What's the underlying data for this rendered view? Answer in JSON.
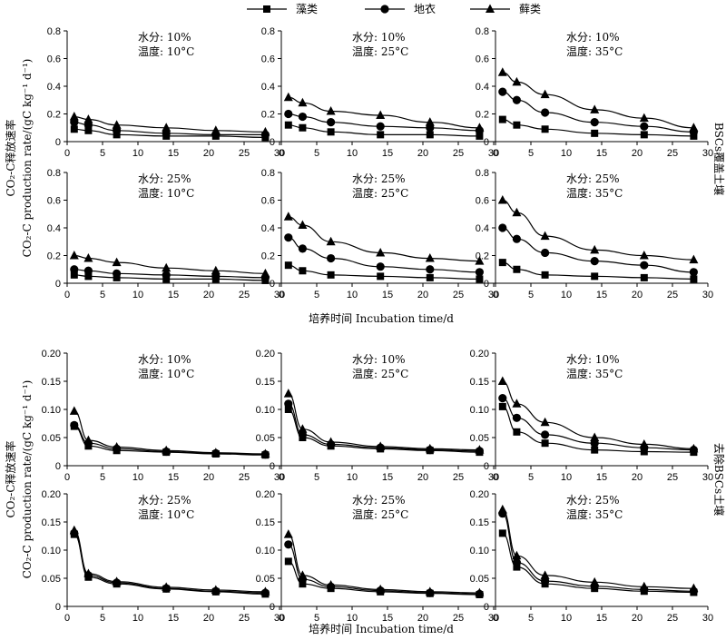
{
  "legend": [
    {
      "name": "藻类",
      "marker": "square"
    },
    {
      "name": "地衣",
      "marker": "circle"
    },
    {
      "name": "藓类",
      "marker": "triangle"
    }
  ],
  "row_groups": [
    {
      "label": "BSCs覆盖土壤",
      "ylabel_cn": "CO₂-C释放速率",
      "ylabel_en": "CO₂-C production rate/(gC kg⁻¹ d⁻¹)",
      "xlabel": "培养时间 Incubation time/d"
    },
    {
      "label": "去除BSCs土壤",
      "ylabel_cn": "CO₂-C释放速率",
      "ylabel_en": "CO₂-C production rate/(gC kg⁻¹ d⁻¹)",
      "xlabel": "培养时间 Incubation time/d"
    }
  ],
  "chart_data": [
    {
      "type": "line",
      "group": 0,
      "moisture": "水分: 10%",
      "temperature": "温度: 10°C",
      "ylim": [
        0,
        0.8
      ],
      "yticks": [
        "0",
        "0.2",
        "0.4",
        "0.6",
        "0.8"
      ],
      "xlim": [
        0,
        30
      ],
      "xticks": [
        "0",
        "5",
        "10",
        "15",
        "20",
        "25",
        "30"
      ],
      "x": [
        1,
        3,
        7,
        14,
        21,
        28
      ],
      "series": [
        {
          "name": "藻类",
          "values": [
            0.09,
            0.08,
            0.05,
            0.04,
            0.04,
            0.03
          ]
        },
        {
          "name": "地衣",
          "values": [
            0.14,
            0.12,
            0.08,
            0.06,
            0.05,
            0.05
          ]
        },
        {
          "name": "藓类",
          "values": [
            0.18,
            0.16,
            0.12,
            0.1,
            0.08,
            0.07
          ]
        }
      ]
    },
    {
      "type": "line",
      "group": 0,
      "moisture": "水分: 10%",
      "temperature": "温度: 25°C",
      "ylim": [
        0,
        0.8
      ],
      "yticks": [
        "0",
        "0.2",
        "0.4",
        "0.6",
        "0.8"
      ],
      "xlim": [
        0,
        30
      ],
      "xticks": [
        "0",
        "5",
        "10",
        "15",
        "20",
        "25",
        "30"
      ],
      "x": [
        1,
        3,
        7,
        14,
        21,
        28
      ],
      "series": [
        {
          "name": "藻类",
          "values": [
            0.12,
            0.1,
            0.07,
            0.05,
            0.05,
            0.04
          ]
        },
        {
          "name": "地衣",
          "values": [
            0.2,
            0.18,
            0.14,
            0.11,
            0.1,
            0.08
          ]
        },
        {
          "name": "藓类",
          "values": [
            0.32,
            0.28,
            0.22,
            0.19,
            0.14,
            0.1
          ]
        }
      ]
    },
    {
      "type": "line",
      "group": 0,
      "moisture": "水分: 10%",
      "temperature": "温度: 35°C",
      "ylim": [
        0,
        0.8
      ],
      "yticks": [
        "0",
        "0.2",
        "0.4",
        "0.6",
        "0.8"
      ],
      "xlim": [
        0,
        30
      ],
      "xticks": [
        "0",
        "5",
        "10",
        "15",
        "20",
        "25",
        "30"
      ],
      "x": [
        1,
        3,
        7,
        14,
        21,
        28
      ],
      "series": [
        {
          "name": "藻类",
          "values": [
            0.16,
            0.12,
            0.09,
            0.06,
            0.05,
            0.04
          ]
        },
        {
          "name": "地衣",
          "values": [
            0.36,
            0.3,
            0.21,
            0.14,
            0.11,
            0.07
          ]
        },
        {
          "name": "藓类",
          "values": [
            0.5,
            0.43,
            0.34,
            0.23,
            0.17,
            0.1
          ]
        }
      ]
    },
    {
      "type": "line",
      "group": 0,
      "moisture": "水分: 25%",
      "temperature": "温度: 10°C",
      "ylim": [
        0,
        0.8
      ],
      "yticks": [
        "0",
        "0.2",
        "0.4",
        "0.6",
        "0.8"
      ],
      "xlim": [
        0,
        30
      ],
      "xticks": [
        "0",
        "5",
        "10",
        "15",
        "20",
        "25",
        "30"
      ],
      "x": [
        1,
        3,
        7,
        14,
        21,
        28
      ],
      "series": [
        {
          "name": "藻类",
          "values": [
            0.06,
            0.05,
            0.04,
            0.03,
            0.03,
            0.02
          ]
        },
        {
          "name": "地衣",
          "values": [
            0.1,
            0.09,
            0.07,
            0.06,
            0.05,
            0.04
          ]
        },
        {
          "name": "藓类",
          "values": [
            0.2,
            0.18,
            0.15,
            0.11,
            0.09,
            0.07
          ]
        }
      ]
    },
    {
      "type": "line",
      "group": 0,
      "moisture": "水分: 25%",
      "temperature": "温度: 25°C",
      "ylim": [
        0,
        0.8
      ],
      "yticks": [
        "0",
        "0.2",
        "0.4",
        "0.6",
        "0.8"
      ],
      "xlim": [
        0,
        30
      ],
      "xticks": [
        "0",
        "5",
        "10",
        "15",
        "20",
        "25",
        "30"
      ],
      "x": [
        1,
        3,
        7,
        14,
        21,
        28
      ],
      "series": [
        {
          "name": "藻类",
          "values": [
            0.13,
            0.09,
            0.06,
            0.05,
            0.04,
            0.03
          ]
        },
        {
          "name": "地衣",
          "values": [
            0.33,
            0.25,
            0.18,
            0.12,
            0.1,
            0.08
          ]
        },
        {
          "name": "藓类",
          "values": [
            0.48,
            0.42,
            0.3,
            0.22,
            0.18,
            0.16
          ]
        }
      ]
    },
    {
      "type": "line",
      "group": 0,
      "moisture": "水分: 25%",
      "temperature": "温度: 35°C",
      "ylim": [
        0,
        0.8
      ],
      "yticks": [
        "0",
        "0.2",
        "0.4",
        "0.6",
        "0.8"
      ],
      "xlim": [
        0,
        30
      ],
      "xticks": [
        "0",
        "5",
        "10",
        "15",
        "20",
        "25",
        "30"
      ],
      "x": [
        1,
        3,
        7,
        14,
        21,
        28
      ],
      "series": [
        {
          "name": "藻类",
          "values": [
            0.15,
            0.1,
            0.06,
            0.05,
            0.04,
            0.03
          ]
        },
        {
          "name": "地衣",
          "values": [
            0.4,
            0.32,
            0.22,
            0.16,
            0.13,
            0.08
          ]
        },
        {
          "name": "藓类",
          "values": [
            0.6,
            0.51,
            0.34,
            0.24,
            0.2,
            0.17
          ]
        }
      ]
    },
    {
      "type": "line",
      "group": 1,
      "moisture": "水分: 10%",
      "temperature": "温度: 10°C",
      "ylim": [
        0,
        0.2
      ],
      "yticks": [
        "0",
        "0.05",
        "0.10",
        "0.15",
        "0.20"
      ],
      "xlim": [
        0,
        30
      ],
      "xticks": [
        "0",
        "5",
        "10",
        "15",
        "20",
        "25",
        "30"
      ],
      "x": [
        1,
        3,
        7,
        14,
        21,
        28
      ],
      "series": [
        {
          "name": "藻类",
          "values": [
            0.07,
            0.035,
            0.027,
            0.024,
            0.021,
            0.019
          ]
        },
        {
          "name": "地衣",
          "values": [
            0.072,
            0.04,
            0.03,
            0.025,
            0.022,
            0.02
          ]
        },
        {
          "name": "藓类",
          "values": [
            0.097,
            0.045,
            0.033,
            0.027,
            0.023,
            0.021
          ]
        }
      ]
    },
    {
      "type": "line",
      "group": 1,
      "moisture": "水分: 10%",
      "temperature": "温度: 25°C",
      "ylim": [
        0,
        0.2
      ],
      "yticks": [
        "0",
        "0.05",
        "0.10",
        "0.15",
        "0.20"
      ],
      "xlim": [
        0,
        30
      ],
      "xticks": [
        "0",
        "5",
        "10",
        "15",
        "20",
        "25",
        "30"
      ],
      "x": [
        1,
        3,
        7,
        14,
        21,
        28
      ],
      "series": [
        {
          "name": "藻类",
          "values": [
            0.1,
            0.05,
            0.035,
            0.03,
            0.027,
            0.024
          ]
        },
        {
          "name": "地衣",
          "values": [
            0.11,
            0.055,
            0.038,
            0.032,
            0.028,
            0.026
          ]
        },
        {
          "name": "藓类",
          "values": [
            0.128,
            0.065,
            0.042,
            0.034,
            0.03,
            0.028
          ]
        }
      ]
    },
    {
      "type": "line",
      "group": 1,
      "moisture": "水分: 10%",
      "temperature": "温度: 35°C",
      "ylim": [
        0,
        0.2
      ],
      "yticks": [
        "0",
        "0.05",
        "0.10",
        "0.15",
        "0.20"
      ],
      "xlim": [
        0,
        30
      ],
      "xticks": [
        "0",
        "5",
        "10",
        "15",
        "20",
        "25",
        "30"
      ],
      "x": [
        1,
        3,
        7,
        14,
        21,
        28
      ],
      "series": [
        {
          "name": "藻类",
          "values": [
            0.105,
            0.06,
            0.04,
            0.028,
            0.025,
            0.024
          ]
        },
        {
          "name": "地衣",
          "values": [
            0.12,
            0.085,
            0.055,
            0.04,
            0.032,
            0.028
          ]
        },
        {
          "name": "藓类",
          "values": [
            0.15,
            0.11,
            0.077,
            0.05,
            0.038,
            0.03
          ]
        }
      ]
    },
    {
      "type": "line",
      "group": 1,
      "moisture": "水分: 25%",
      "temperature": "温度: 10°C",
      "ylim": [
        0,
        0.2
      ],
      "yticks": [
        "0",
        "0.05",
        "0.10",
        "0.15",
        "0.20"
      ],
      "xlim": [
        0,
        30
      ],
      "xticks": [
        "0",
        "5",
        "10",
        "15",
        "20",
        "25",
        "30"
      ],
      "x": [
        1,
        3,
        7,
        14,
        21,
        28
      ],
      "series": [
        {
          "name": "藻类",
          "values": [
            0.128,
            0.052,
            0.04,
            0.031,
            0.026,
            0.022
          ]
        },
        {
          "name": "地衣",
          "values": [
            0.13,
            0.055,
            0.042,
            0.032,
            0.027,
            0.024
          ]
        },
        {
          "name": "藓类",
          "values": [
            0.135,
            0.058,
            0.044,
            0.034,
            0.029,
            0.026
          ]
        }
      ]
    },
    {
      "type": "line",
      "group": 1,
      "moisture": "水分: 25%",
      "temperature": "温度: 25°C",
      "ylim": [
        0,
        0.2
      ],
      "yticks": [
        "0",
        "0.05",
        "0.10",
        "0.15",
        "0.20"
      ],
      "xlim": [
        0,
        30
      ],
      "xticks": [
        "0",
        "5",
        "10",
        "15",
        "20",
        "25",
        "30"
      ],
      "x": [
        1,
        3,
        7,
        14,
        21,
        28
      ],
      "series": [
        {
          "name": "藻类",
          "values": [
            0.08,
            0.04,
            0.032,
            0.026,
            0.023,
            0.021
          ]
        },
        {
          "name": "地衣",
          "values": [
            0.11,
            0.048,
            0.035,
            0.028,
            0.024,
            0.022
          ]
        },
        {
          "name": "藓类",
          "values": [
            0.128,
            0.055,
            0.038,
            0.03,
            0.026,
            0.024
          ]
        }
      ]
    },
    {
      "type": "line",
      "group": 1,
      "moisture": "水分: 25%",
      "temperature": "温度: 35°C",
      "ylim": [
        0,
        0.2
      ],
      "yticks": [
        "0",
        "0.05",
        "0.10",
        "0.15",
        "0.20"
      ],
      "xlim": [
        0,
        30
      ],
      "xticks": [
        "0",
        "5",
        "10",
        "15",
        "20",
        "25",
        "30"
      ],
      "x": [
        1,
        3,
        7,
        14,
        21,
        28
      ],
      "series": [
        {
          "name": "藻类",
          "values": [
            0.13,
            0.07,
            0.04,
            0.032,
            0.027,
            0.025
          ]
        },
        {
          "name": "地衣",
          "values": [
            0.165,
            0.078,
            0.045,
            0.036,
            0.03,
            0.027
          ]
        },
        {
          "name": "藓类",
          "values": [
            0.172,
            0.09,
            0.055,
            0.043,
            0.035,
            0.032
          ]
        }
      ]
    }
  ]
}
